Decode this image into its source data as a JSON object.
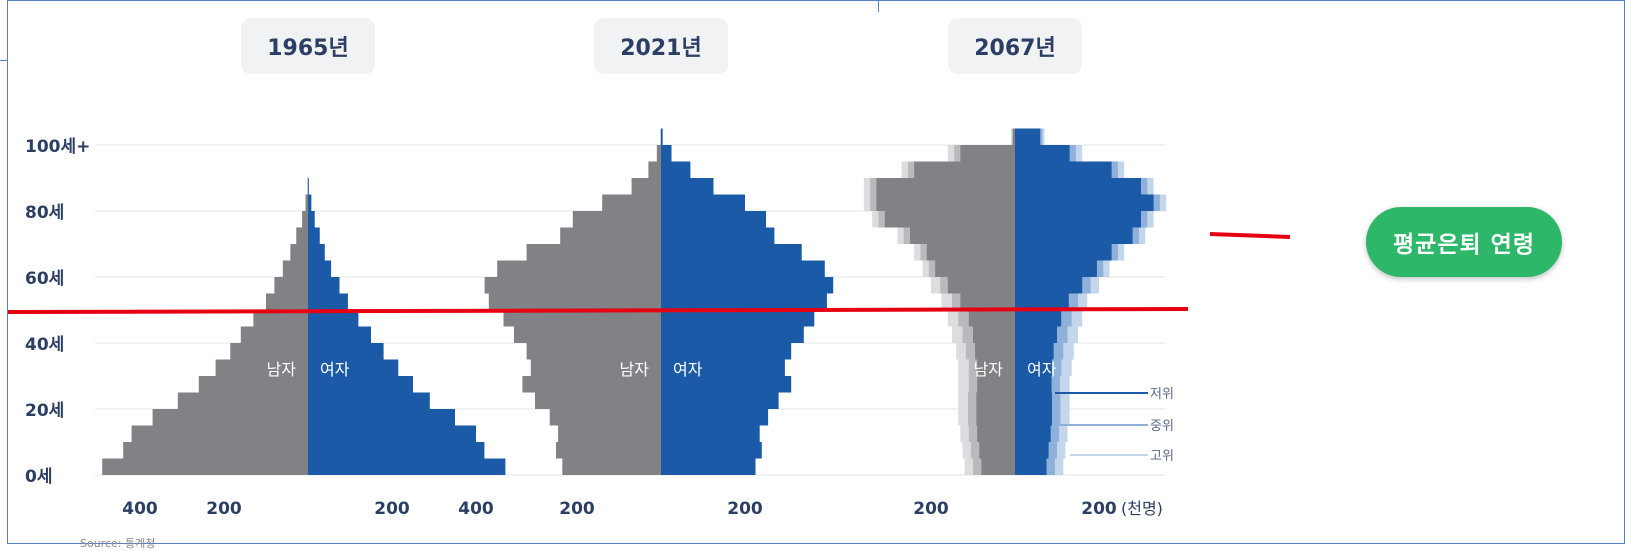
{
  "chart_data": {
    "type": "population-pyramid",
    "unit_label": "(천명)",
    "y_ticks": [
      "100세+",
      "80세",
      "60세",
      "40세",
      "20세",
      "0세"
    ],
    "y_tick_values": [
      100,
      80,
      60,
      40,
      20,
      0
    ],
    "male_label": "남자",
    "female_label": "여자",
    "panels": [
      {
        "year": "1965년",
        "x_ticks": [
          "400",
          "200",
          "200",
          "400"
        ],
        "ages": [
          0,
          5,
          10,
          15,
          20,
          25,
          30,
          35,
          40,
          45,
          50,
          55,
          60,
          65,
          70,
          75,
          80,
          85
        ],
        "male": [
          490,
          440,
          420,
          370,
          310,
          260,
          220,
          185,
          160,
          130,
          100,
          80,
          60,
          42,
          28,
          14,
          6,
          1
        ],
        "female": [
          470,
          420,
          400,
          350,
          290,
          250,
          215,
          180,
          150,
          120,
          95,
          75,
          55,
          40,
          28,
          16,
          8,
          2
        ]
      },
      {
        "year": "2021년",
        "x_ticks": [
          "200",
          "200"
        ],
        "ages": [
          0,
          5,
          10,
          15,
          20,
          25,
          30,
          35,
          40,
          45,
          50,
          55,
          60,
          65,
          70,
          75,
          80,
          85,
          90,
          95,
          100
        ],
        "male": [
          235,
          250,
          245,
          265,
          300,
          330,
          310,
          320,
          350,
          375,
          410,
          420,
          390,
          320,
          240,
          210,
          140,
          70,
          30,
          10,
          1
        ],
        "female": [
          225,
          240,
          235,
          255,
          280,
          310,
          295,
          310,
          340,
          365,
          395,
          410,
          390,
          335,
          270,
          250,
          200,
          125,
          70,
          25,
          4
        ]
      },
      {
        "year": "2067년",
        "x_ticks": [
          "200",
          "200"
        ],
        "x_unit": "(천명)",
        "ages": [
          0,
          5,
          10,
          15,
          20,
          25,
          30,
          35,
          40,
          45,
          50,
          55,
          60,
          65,
          70,
          75,
          80,
          85,
          90,
          95,
          100
        ],
        "male": [
          80,
          85,
          90,
          92,
          92,
          90,
          90,
          95,
          100,
          110,
          130,
          160,
          190,
          210,
          250,
          310,
          330,
          330,
          240,
          130,
          5
        ],
        "female": [
          75,
          80,
          85,
          88,
          88,
          87,
          88,
          92,
          100,
          110,
          128,
          160,
          195,
          230,
          280,
          300,
          330,
          300,
          230,
          130,
          60
        ],
        "bands": {
          "high_male": [
            120,
            125,
            130,
            135,
            135,
            135,
            135,
            140,
            150,
            160,
            175,
            200,
            220,
            240,
            280,
            340,
            360,
            360,
            270,
            160,
            10
          ],
          "high_female": [
            115,
            120,
            125,
            130,
            130,
            130,
            135,
            140,
            150,
            160,
            172,
            200,
            225,
            260,
            310,
            330,
            360,
            330,
            260,
            160,
            70
          ],
          "mid_male": [
            100,
            105,
            110,
            112,
            112,
            110,
            110,
            117,
            125,
            135,
            150,
            178,
            205,
            225,
            265,
            325,
            345,
            345,
            255,
            145,
            7
          ],
          "mid_female": [
            95,
            100,
            105,
            108,
            108,
            107,
            110,
            115,
            125,
            135,
            150,
            180,
            210,
            245,
            295,
            315,
            345,
            315,
            245,
            145,
            65
          ]
        },
        "band_labels": [
          "저위",
          "중위",
          "고위"
        ]
      }
    ],
    "series_colors": {
      "male": "#808285",
      "female": "#1a5aa6",
      "band_mid": "#8fb0d8",
      "band_high": "#c3d6ec",
      "band_male_mid": "#b8babd",
      "band_male_high": "#dcdddf"
    },
    "annotation": {
      "label": "평균은퇴 연령",
      "line_color": "#e60012",
      "pill_color": "#2db768"
    },
    "source": "Source: 통계청"
  }
}
